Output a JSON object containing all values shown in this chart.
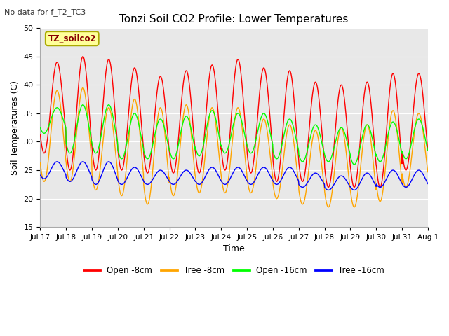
{
  "title": "Tonzi Soil CO2 Profile: Lower Temperatures",
  "subtitle": "No data for f_T2_TC3",
  "box_label": "TZ_soilco2",
  "xlabel": "Time",
  "ylabel": "Soil Temperatures (C)",
  "ylim": [
    15,
    50
  ],
  "yticks": [
    15,
    20,
    25,
    30,
    35,
    40,
    45,
    50
  ],
  "xtick_labels": [
    "Jul 17",
    "Jul 18",
    "Jul 19",
    "Jul 20",
    "Jul 21",
    "Jul 22",
    "Jul 23",
    "Jul 24",
    "Jul 25",
    "Jul 26",
    "Jul 27",
    "Jul 28",
    "Jul 29",
    "Jul 30",
    "Jul 31",
    "Aug 1"
  ],
  "colors": {
    "open_8cm": "#ff0000",
    "tree_8cm": "#ffa500",
    "open_16cm": "#00ff00",
    "tree_16cm": "#0000ff"
  },
  "legend_labels": [
    "Open -8cm",
    "Tree -8cm",
    "Open -16cm",
    "Tree -16cm"
  ],
  "background_color": "#ffffff",
  "plot_bg_color": "#e8e8e8",
  "n_days": 15,
  "open_8cm_peaks": [
    44,
    45,
    44.5,
    43,
    41.5,
    42.5,
    43.5,
    44.5,
    43,
    42.5,
    40.5,
    40,
    40.5,
    42,
    42
  ],
  "open_8cm_troughs": [
    28,
    25,
    25,
    25,
    24.5,
    24.5,
    24.5,
    25,
    24.5,
    23,
    23,
    22,
    22,
    22,
    25
  ],
  "tree_8cm_peaks": [
    39,
    39.5,
    36,
    37.5,
    36,
    36.5,
    36,
    36,
    34,
    33,
    32,
    32.5,
    33,
    35.5,
    35
  ],
  "tree_8cm_troughs": [
    23,
    23,
    21.5,
    20.5,
    19,
    20.5,
    21,
    21,
    21,
    20,
    19,
    18.5,
    18.5,
    19.5,
    22
  ],
  "open_16cm_peaks": [
    36,
    36.5,
    36.5,
    35,
    34,
    34.5,
    35.5,
    35,
    35,
    34,
    33,
    32.5,
    33,
    33.5,
    34
  ],
  "open_16cm_troughs": [
    31.5,
    28,
    28,
    27,
    27,
    27,
    27.5,
    28,
    28,
    27,
    26.5,
    26.5,
    26,
    26.5,
    27
  ],
  "tree_16cm_peaks": [
    26.5,
    26.5,
    26.5,
    25.5,
    25,
    25,
    25.5,
    25.5,
    25.5,
    25.5,
    24.5,
    24,
    24.5,
    25,
    25
  ],
  "tree_16cm_troughs": [
    23.5,
    23,
    22.5,
    22.5,
    22.5,
    22.5,
    22.5,
    22.5,
    22.5,
    22.5,
    22,
    21.5,
    21.5,
    22,
    22
  ],
  "peak_phase": 0.65,
  "trough_phase": 0.15
}
